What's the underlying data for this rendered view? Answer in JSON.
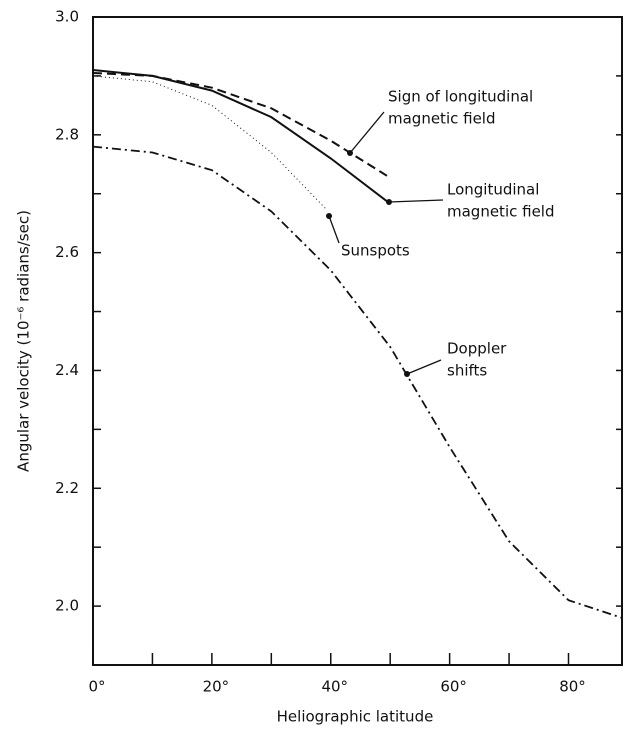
{
  "chart_data": {
    "type": "line",
    "xlabel": "Heliographic latitude",
    "ylabel": "Angular velocity (10⁻⁶ radians/sec)",
    "xlim": [
      0,
      89
    ],
    "ylim": [
      1.9,
      3.0
    ],
    "xticks": [
      {
        "value": 0,
        "label": "0°"
      },
      {
        "value": 20,
        "label": "20°"
      },
      {
        "value": 40,
        "label": "40°"
      },
      {
        "value": 60,
        "label": "60°"
      },
      {
        "value": 80,
        "label": "80°"
      }
    ],
    "xminorticks": [
      10,
      30,
      50,
      70
    ],
    "yticks": [
      {
        "value": 2.0,
        "label": "2.0"
      },
      2.2,
      2.4,
      2.6,
      2.8,
      {
        "value": 3.0,
        "label": "3.0"
      }
    ],
    "yminorticks": [
      2.1,
      2.3,
      2.5,
      2.7,
      2.9
    ],
    "series": [
      {
        "name_lines": [
          "Sign of longitudinal",
          "magnetic field"
        ],
        "color": "#111111",
        "style": "dashed",
        "x": [
          0,
          10,
          20,
          30,
          40,
          50
        ],
        "values": [
          2.905,
          2.9,
          2.88,
          2.845,
          2.79,
          2.727
        ]
      },
      {
        "name_lines": [
          "Longitudinal",
          "magnetic field"
        ],
        "color": "#111111",
        "style": "solid",
        "x": [
          0,
          10,
          20,
          30,
          40,
          49.6
        ],
        "values": [
          2.91,
          2.9,
          2.875,
          2.83,
          2.76,
          2.686
        ]
      },
      {
        "name_lines": [
          "Sunspots"
        ],
        "color": "#111111",
        "style": "dotted",
        "x": [
          0,
          10,
          20,
          30,
          39.4
        ],
        "values": [
          2.9,
          2.89,
          2.85,
          2.77,
          2.672
        ]
      },
      {
        "name_lines": [
          "Doppler",
          "shifts"
        ],
        "color": "#111111",
        "style": "dashdot",
        "x": [
          0,
          10,
          20,
          30,
          40,
          50,
          60,
          70,
          80,
          89
        ],
        "values": [
          2.78,
          2.77,
          2.74,
          2.67,
          2.57,
          2.44,
          2.27,
          2.11,
          2.01,
          1.98
        ]
      }
    ]
  }
}
